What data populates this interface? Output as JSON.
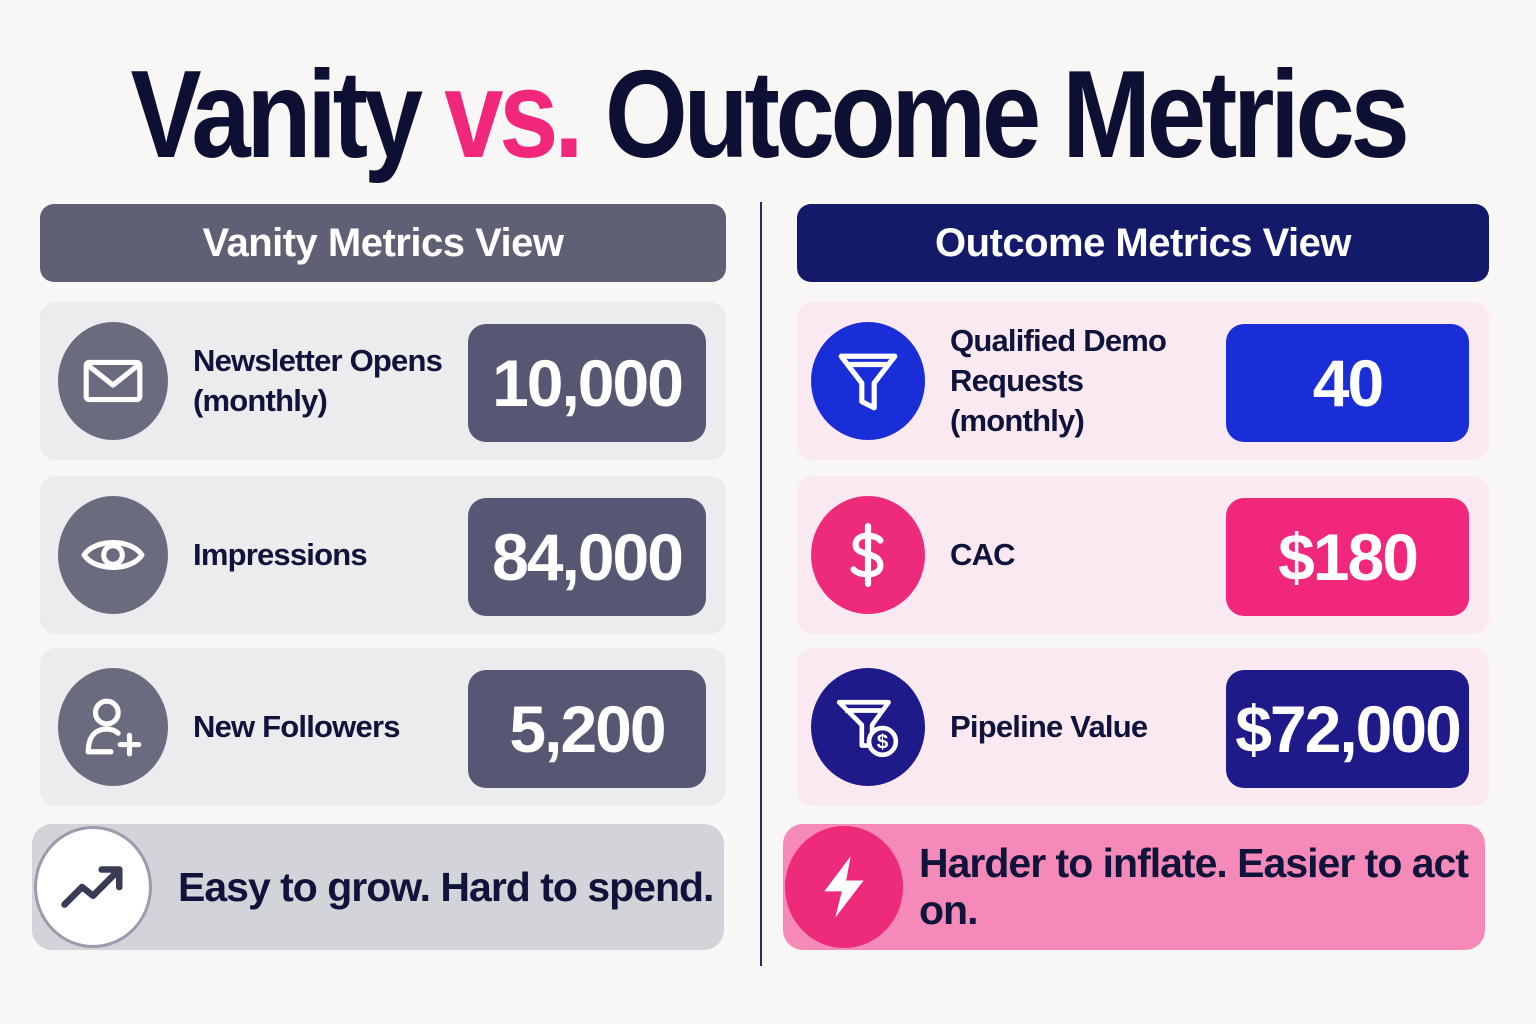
{
  "title": {
    "left": "Vanity",
    "vs": "vs.",
    "right": "Outcome Metrics"
  },
  "colors": {
    "vanity_header": "#5f6075",
    "outcome_header": "#141a6a",
    "accent_pink": "#f0277a",
    "accent_blue": "#1a2ed8",
    "accent_navy": "#1f1a8a"
  },
  "vanity": {
    "header": "Vanity Metrics View",
    "metrics": [
      {
        "icon": "mail-icon",
        "label": "Newsletter Opens\n(monthly)",
        "value": "10,000"
      },
      {
        "icon": "eye-icon",
        "label": "Impressions",
        "value": "84,000"
      },
      {
        "icon": "add-user-icon",
        "label": "New Followers",
        "value": "5,200"
      }
    ],
    "footer": {
      "icon": "trend-up-icon",
      "text": "Easy to grow. Hard to spend."
    }
  },
  "outcome": {
    "header": "Outcome Metrics View",
    "metrics": [
      {
        "icon": "funnel-icon",
        "label": "Qualified Demo\nRequests (monthly)",
        "value": "40",
        "color": "#1a2ed8"
      },
      {
        "icon": "dollar-icon",
        "label": "CAC",
        "value": "$180",
        "color": "#f0277a"
      },
      {
        "icon": "funnel-dollar-icon",
        "label": "Pipeline Value",
        "value": "$72,000",
        "color": "#1f1a8a"
      }
    ],
    "footer": {
      "icon": "lightning-icon",
      "text": "Harder to inflate. Easier to act on."
    }
  }
}
